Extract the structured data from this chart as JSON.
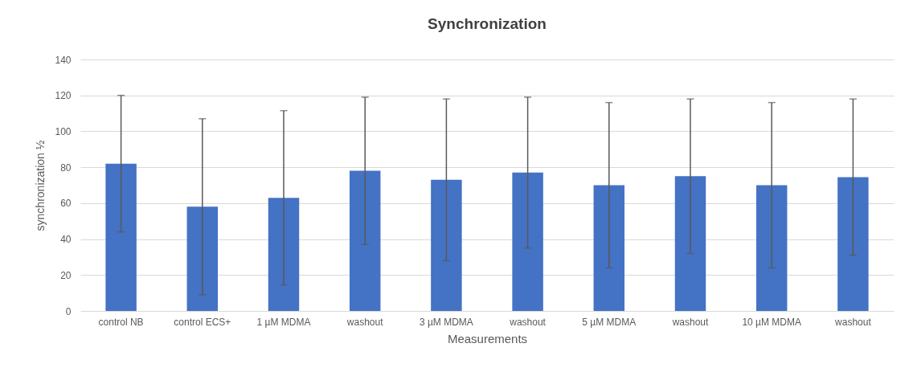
{
  "chart_data": {
    "type": "bar",
    "title": "Synchronization",
    "xlabel": "Measurements",
    "ylabel": "synchronization ½",
    "categories": [
      "control NB",
      "control ECS+",
      "1 µM MDMA",
      "washout",
      "3 µM MDMA",
      "washout",
      "5 µM MDMA",
      "washout",
      "10 µM MDMA",
      "washout"
    ],
    "values": [
      82,
      58,
      63,
      78,
      73,
      77,
      70,
      75,
      70,
      74.5
    ],
    "errors": [
      38,
      49,
      48.5,
      41,
      45,
      42,
      46,
      43,
      46,
      43.5
    ],
    "color": "#4472c4",
    "ylim": [
      0,
      140
    ],
    "yticks": [
      0,
      20,
      40,
      60,
      80,
      100,
      120,
      140
    ],
    "grid": "y"
  }
}
